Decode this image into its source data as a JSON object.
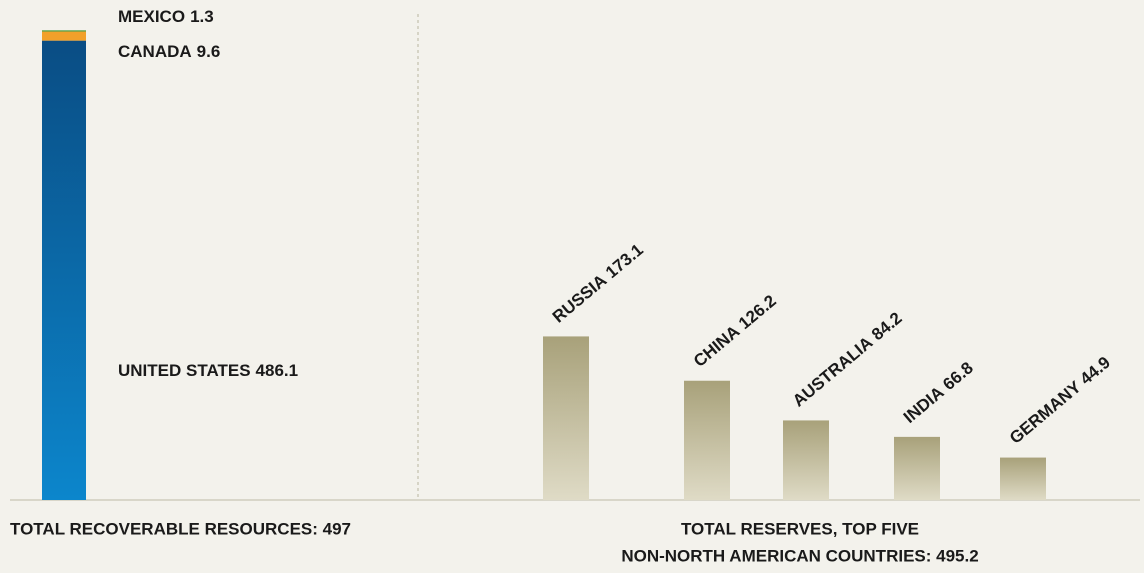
{
  "chart_data": [
    {
      "type": "bar",
      "stacked": true,
      "categories": [
        null
      ],
      "series": [
        {
          "name": "UNITED STATES",
          "color": "#0b5a94",
          "gradient": [
            "#0a4d84",
            "#0c86cc"
          ],
          "values": [
            486.1
          ]
        },
        {
          "name": "CANADA",
          "color": "#f2a02a",
          "values": [
            9.6
          ]
        },
        {
          "name": "MEXICO",
          "color": "#4e9a3c",
          "values": [
            1.3
          ]
        }
      ],
      "xlabel": [
        "TOTAL RECOVERABLE RESOURCES: 497"
      ]
    },
    {
      "type": "bar",
      "categories": [
        "RUSSIA",
        "CHINA",
        "AUSTRALIA",
        "INDIA",
        "GERMANY"
      ],
      "values": [
        173.1,
        126.2,
        84.2,
        66.8,
        44.9
      ],
      "color": "#b8b18c",
      "gradient": [
        "#a8a17a",
        "#dfdbc6"
      ],
      "xlabel": [
        "TOTAL RESERVES, TOP FIVE",
        "NON-NORTH AMERICAN COUNTRIES: 495.2"
      ]
    }
  ]
}
